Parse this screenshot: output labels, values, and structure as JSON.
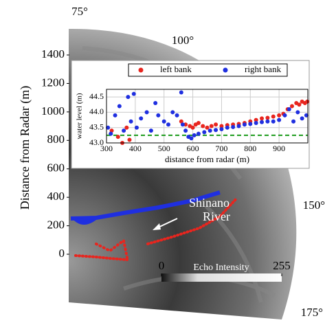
{
  "chart_data": [
    {
      "type": "radar_image",
      "ylabel": "Distance from Radar (m)",
      "ylim": [
        0,
        1400
      ],
      "yticks": [
        0,
        200,
        400,
        600,
        800,
        1000,
        1200,
        1400
      ],
      "bearing_labels": [
        "75°",
        "100°",
        "150°",
        "175°"
      ],
      "annotation_lines": [
        "Shinano",
        "River"
      ],
      "colorbar": {
        "label": "Echo Intensity",
        "ticks": [
          0,
          255
        ]
      }
    },
    {
      "type": "scatter",
      "xlabel": "distance from radar (m)",
      "ylabel": "water level (m)",
      "xlim": [
        300,
        1000
      ],
      "ylim": [
        43.0,
        44.75
      ],
      "xticks": [
        300,
        400,
        500,
        600,
        700,
        800,
        900
      ],
      "yticks": [
        {
          "value": 43.0,
          "label": "43.0"
        },
        43.5,
        {
          "value": 44.0,
          "label": "44.0"
        },
        44.5
      ],
      "grid": true,
      "legend": "top",
      "reference_line": {
        "y": 43.25,
        "color": "#1a9a1a",
        "style": "dashed"
      },
      "series": [
        {
          "name": "left bank",
          "color": "#e8251e",
          "x": [
            318,
            340,
            355,
            370,
            380,
            560,
            575,
            590,
            600,
            610,
            620,
            635,
            650,
            665,
            680,
            700,
            720,
            740,
            760,
            780,
            800,
            820,
            840,
            860,
            880,
            900,
            915,
            930,
            945,
            960,
            970,
            980,
            990,
            998
          ],
          "values": [
            43.4,
            43.2,
            43.0,
            43.5,
            43.1,
            43.7,
            43.6,
            43.55,
            43.5,
            43.6,
            43.65,
            43.55,
            43.5,
            43.55,
            43.6,
            43.55,
            43.58,
            43.6,
            43.62,
            43.65,
            43.7,
            43.75,
            43.8,
            43.82,
            43.86,
            43.9,
            43.95,
            44.1,
            44.2,
            44.3,
            44.25,
            44.35,
            44.3,
            44.35
          ]
        },
        {
          "name": "right bank",
          "color": "#1f2fe0",
          "x": [
            305,
            315,
            330,
            345,
            360,
            375,
            385,
            395,
            405,
            420,
            440,
            455,
            470,
            480,
            500,
            515,
            530,
            545,
            560,
            565,
            575,
            585,
            595,
            605,
            620,
            640,
            660,
            680,
            700,
            720,
            740,
            760,
            780,
            800,
            820,
            840,
            860,
            880,
            900,
            920,
            935,
            950,
            965,
            980,
            995
          ],
          "values": [
            43.5,
            43.3,
            43.9,
            44.2,
            43.4,
            44.5,
            43.7,
            44.6,
            43.5,
            43.8,
            44.0,
            43.4,
            44.3,
            43.9,
            43.7,
            43.6,
            44.0,
            43.9,
            44.65,
            43.6,
            43.4,
            43.2,
            43.15,
            43.25,
            43.3,
            43.35,
            43.4,
            43.42,
            43.45,
            43.5,
            43.52,
            43.55,
            43.6,
            43.62,
            43.65,
            43.68,
            43.7,
            43.7,
            43.75,
            43.9,
            44.1,
            43.7,
            44.0,
            43.8,
            43.9
          ]
        }
      ]
    }
  ]
}
